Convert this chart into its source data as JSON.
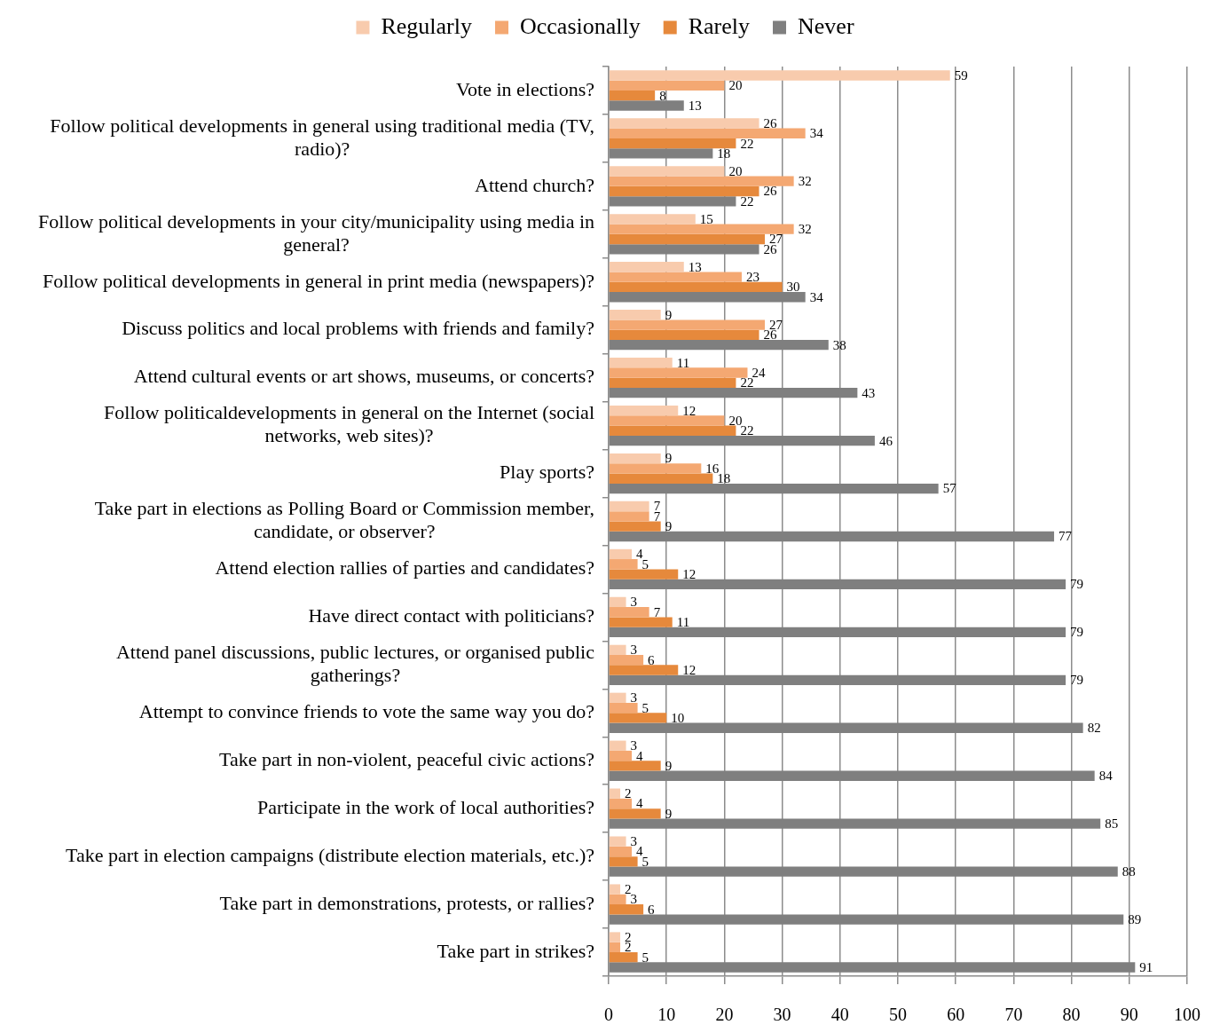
{
  "chart_data": {
    "type": "bar",
    "orientation": "horizontal",
    "categories": [
      "Vote in elections?",
      "Follow political developments in general using traditional media (TV, radio)?",
      "Attend church?",
      "Follow political developments in your city/municipality using media in general?",
      "Follow political developments in general in print media (newspapers)?",
      "Discuss politics and local problems with friends and family?",
      "Attend cultural events or art shows, museums, or concerts?",
      "Follow politicaldevelopments in general on the Internet (social networks, web sites)?",
      "Play sports?",
      "Take part in elections as Polling Board or Commission member, candidate, or observer?",
      "Attend election rallies of parties and candidates?",
      "Have direct contact with politicians?",
      "Attend panel discussions, public lectures, or organised public gatherings?",
      "Attempt to convince friends to vote the same way you do?",
      "Take part in non-violent, peaceful civic actions?",
      "Participate in the work of local authorities?",
      "Take part in election campaigns (distribute election materials, etc.)?",
      "Take part in demonstrations, protests, or rallies?",
      "Take part in strikes?"
    ],
    "series": [
      {
        "name": "Regularly",
        "color": "#f8cbad",
        "values": [
          59,
          26,
          20,
          15,
          13,
          9,
          11,
          12,
          9,
          7,
          4,
          3,
          3,
          3,
          3,
          2,
          3,
          2,
          2
        ]
      },
      {
        "name": "Occasionally",
        "color": "#f4a872",
        "values": [
          20,
          34,
          32,
          32,
          23,
          27,
          24,
          20,
          16,
          7,
          5,
          7,
          6,
          5,
          4,
          4,
          4,
          3,
          2
        ]
      },
      {
        "name": "Rarely",
        "color": "#e6893c",
        "values": [
          8,
          22,
          26,
          27,
          30,
          26,
          22,
          22,
          18,
          9,
          12,
          11,
          12,
          10,
          9,
          9,
          5,
          6,
          5
        ]
      },
      {
        "name": "Never",
        "color": "#7f7f7f",
        "values": [
          13,
          18,
          22,
          26,
          34,
          38,
          43,
          46,
          57,
          77,
          79,
          79,
          79,
          82,
          84,
          85,
          88,
          89,
          91
        ]
      }
    ],
    "xlim": [
      0,
      100
    ],
    "xticks": [
      0,
      10,
      20,
      30,
      40,
      50,
      60,
      70,
      80,
      90,
      100
    ],
    "grid": "x",
    "legend": "top",
    "data_labels": true
  }
}
